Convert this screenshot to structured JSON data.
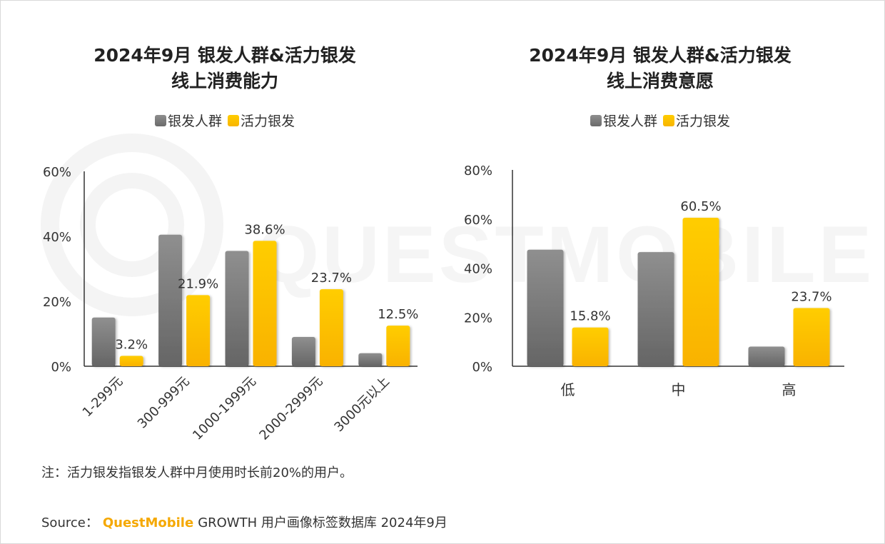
{
  "watermark": "QUESTMOBILE",
  "colors": {
    "gray": "#777777",
    "gold": "#fbbf00",
    "axis": "#333333",
    "brand": "#f5a800"
  },
  "chart_data": [
    {
      "type": "bar",
      "title_lines": [
        "2024年9月 银发人群&活力银发",
        "线上消费能力"
      ],
      "categories": [
        "1-299元",
        "300-999元",
        "1000-1999元",
        "2000-2999元",
        "3000元以上"
      ],
      "series": [
        {
          "name": "银发人群",
          "values": [
            15.0,
            40.5,
            35.5,
            9.0,
            4.0
          ],
          "labels": []
        },
        {
          "name": "活力银发",
          "values": [
            3.2,
            21.9,
            38.6,
            23.7,
            12.5
          ],
          "labels": [
            "3.2%",
            "21.9%",
            "38.6%",
            "23.7%",
            "12.5%"
          ]
        }
      ],
      "yticks": [
        "0%",
        "20%",
        "40%",
        "60%"
      ],
      "ylim": [
        0,
        60
      ],
      "grid": false,
      "rotate_xlabels": true,
      "legend_position": "top-center"
    },
    {
      "type": "bar",
      "title_lines": [
        "2024年9月 银发人群&活力银发",
        "线上消费意愿"
      ],
      "categories": [
        "低",
        "中",
        "高"
      ],
      "series": [
        {
          "name": "银发人群",
          "values": [
            47.5,
            46.5,
            8.0
          ],
          "labels": []
        },
        {
          "name": "活力银发",
          "values": [
            15.8,
            60.5,
            23.7
          ],
          "labels": [
            "15.8%",
            "60.5%",
            "23.7%"
          ]
        }
      ],
      "yticks": [
        "0%",
        "20%",
        "40%",
        "60%",
        "80%"
      ],
      "ylim": [
        0,
        80
      ],
      "grid": false,
      "rotate_xlabels": false,
      "legend_position": "top-center"
    }
  ],
  "note": "注：活力银发指银发人群中月使用时长前20%的用户。",
  "source": {
    "prefix": "Source：",
    "brand": "QuestMobile",
    "rest": "GROWTH 用户画像标签数据库 2024年9月"
  }
}
